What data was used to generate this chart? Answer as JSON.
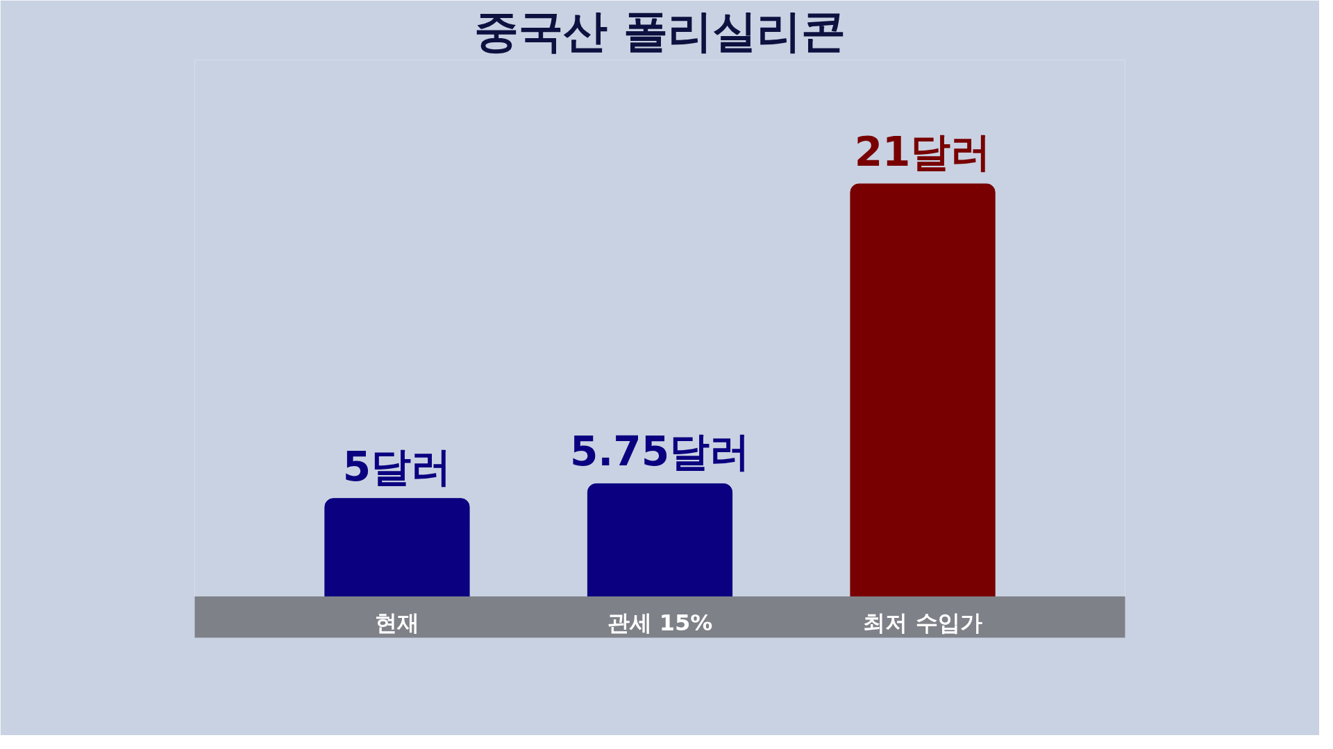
{
  "chart_data": {
    "type": "bar",
    "title": "중국산 폴리실리콘",
    "categories": [
      "현재",
      "관세 15%",
      "최저 수입가"
    ],
    "values": [
      5,
      5.75,
      21
    ],
    "colors": [
      "#0a0080",
      "#0a0080",
      "#780000"
    ],
    "value_labels": [
      "5달러",
      "5.75달러",
      "21달러"
    ]
  }
}
